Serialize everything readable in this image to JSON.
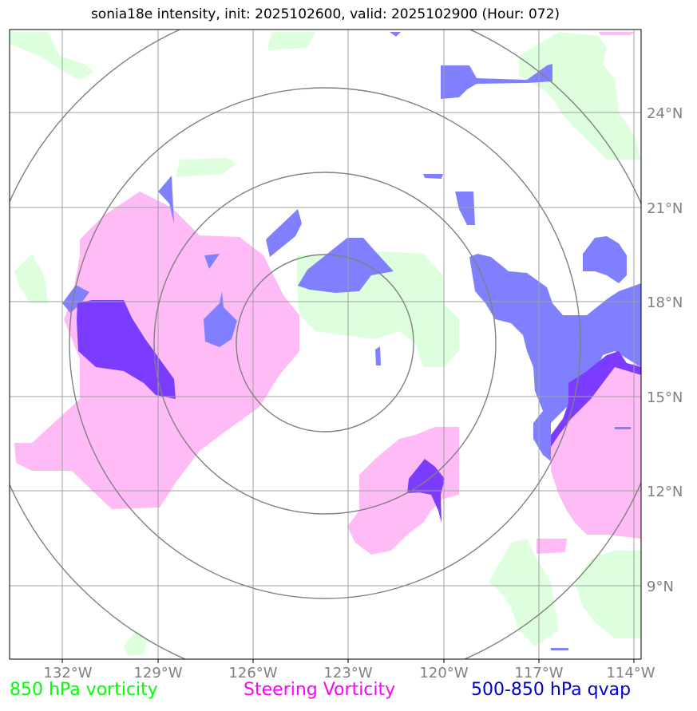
{
  "title": "sonia18e intensity, init: 2025102600, valid: 2025102900 (Hour: 072)",
  "lon_ticks": [
    "132°W",
    "129°W",
    "126°W",
    "123°W",
    "120°W",
    "117°W",
    "114°W"
  ],
  "lat_ticks": [
    "24°N",
    "21°N",
    "18°N",
    "15°N",
    "12°N",
    "9°N"
  ],
  "legend": [
    {
      "label": "850 hPa vorticity",
      "color": "#00ff00"
    },
    {
      "label": "Steering Vorticity",
      "color": "#ff00ff"
    },
    {
      "label": "500-850 hPa qvap",
      "color": "#0000cd"
    }
  ],
  "colors": {
    "vorticity_fill": "#ddffdd",
    "steering_fill": "#ffbbf5",
    "qvap_fill": "#8080ff",
    "overlap_fill": "#7c3cff",
    "grid": "#a0a0a0",
    "range_rings": "#808080"
  }
}
